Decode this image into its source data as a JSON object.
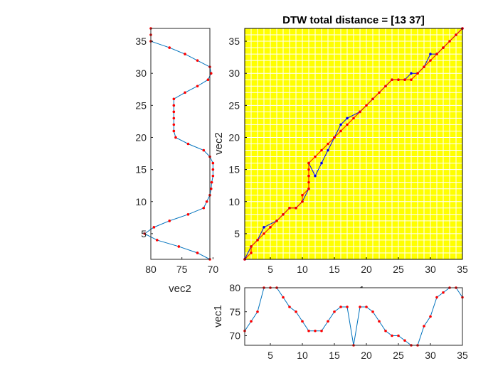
{
  "chart_data": [
    {
      "id": "main",
      "type": "line",
      "title": "DTW total distance = [13 37]",
      "xlabel": "vec1",
      "ylabel": "vec2",
      "xlim": [
        1,
        35
      ],
      "ylim": [
        1,
        37
      ],
      "xticks": [
        5,
        10,
        15,
        20,
        25,
        30,
        35
      ],
      "yticks": [
        5,
        10,
        15,
        20,
        25,
        30,
        35
      ],
      "grid": true,
      "colors": {
        "background": "#ffff00",
        "grid": "#ffffff",
        "frame": "#000000"
      },
      "series": [
        {
          "style": "blue path with blue dots",
          "color": "#0000ff",
          "points": [
            [
              1,
              1
            ],
            [
              2,
              3
            ],
            [
              3,
              4
            ],
            [
              4,
              6
            ],
            [
              6,
              7
            ],
            [
              7,
              8
            ],
            [
              8,
              9
            ],
            [
              9,
              9
            ],
            [
              10,
              10
            ],
            [
              11,
              12
            ],
            [
              11,
              14
            ],
            [
              11,
              16
            ],
            [
              12,
              14
            ],
            [
              13,
              16
            ],
            [
              14,
              18
            ],
            [
              15,
              20
            ],
            [
              16,
              22
            ],
            [
              17,
              23
            ],
            [
              19,
              24
            ],
            [
              21,
              26
            ],
            [
              23,
              28
            ],
            [
              24,
              29
            ],
            [
              25,
              29
            ],
            [
              26,
              29
            ],
            [
              27,
              30
            ],
            [
              28,
              30
            ],
            [
              29,
              31
            ],
            [
              30,
              33
            ],
            [
              31,
              33
            ],
            [
              32,
              34
            ],
            [
              34,
              36
            ],
            [
              35,
              37
            ]
          ]
        },
        {
          "style": "red path with red dots",
          "color": "#ff0000",
          "points": [
            [
              1,
              1
            ],
            [
              2,
              2
            ],
            [
              2,
              3
            ],
            [
              3,
              4
            ],
            [
              4,
              5
            ],
            [
              5,
              6
            ],
            [
              6,
              7
            ],
            [
              7,
              8
            ],
            [
              8,
              9
            ],
            [
              9,
              9
            ],
            [
              10,
              10
            ],
            [
              10,
              11
            ],
            [
              11,
              12
            ],
            [
              11,
              13
            ],
            [
              11,
              14
            ],
            [
              11,
              15
            ],
            [
              11,
              16
            ],
            [
              12,
              17
            ],
            [
              13,
              18
            ],
            [
              14,
              19
            ],
            [
              15,
              20
            ],
            [
              16,
              21
            ],
            [
              17,
              22
            ],
            [
              18,
              23
            ],
            [
              19,
              24
            ],
            [
              20,
              25
            ],
            [
              21,
              26
            ],
            [
              22,
              27
            ],
            [
              23,
              28
            ],
            [
              24,
              29
            ],
            [
              25,
              29
            ],
            [
              26,
              29
            ],
            [
              27,
              29
            ],
            [
              28,
              30
            ],
            [
              29,
              31
            ],
            [
              30,
              32
            ],
            [
              31,
              33
            ],
            [
              32,
              34
            ],
            [
              33,
              35
            ],
            [
              34,
              36
            ],
            [
              35,
              37
            ]
          ]
        }
      ]
    },
    {
      "id": "left",
      "type": "line",
      "orientation": "vertical",
      "xlabel": "vec2",
      "xlim": [
        80,
        70.5
      ],
      "ylim": [
        1,
        37
      ],
      "xticks": [
        80,
        75,
        70
      ],
      "yticks": [
        5,
        10,
        15,
        20,
        25,
        30,
        35
      ],
      "colors": {
        "line": "#0072bd",
        "marker": "#ff0000"
      },
      "values": [
        70.5,
        72.5,
        75.5,
        79,
        81,
        79.5,
        77,
        74,
        71.5,
        71,
        70.5,
        70.3,
        70.2,
        70,
        70,
        70,
        70.5,
        71.5,
        74,
        76,
        76.3,
        76.3,
        76.3,
        76.3,
        76.3,
        76.3,
        74.5,
        72.5,
        70.8,
        70.3,
        70.5,
        72.5,
        74.5,
        77,
        80,
        80,
        80
      ]
    },
    {
      "id": "bottom",
      "type": "line",
      "xlabel": "vec1",
      "ylabel": "vec1",
      "xlim": [
        1,
        35
      ],
      "ylim": [
        68,
        80
      ],
      "xticks": [
        5,
        10,
        15,
        20,
        25,
        30,
        35
      ],
      "yticks": [
        70,
        75,
        80
      ],
      "colors": {
        "line": "#0072bd",
        "marker": "#ff0000"
      },
      "values": [
        71,
        73,
        75,
        80,
        80,
        80,
        78,
        76,
        75,
        73,
        71,
        71,
        71,
        73,
        75,
        76,
        76,
        68,
        76,
        76,
        75,
        73,
        71,
        70,
        70,
        69,
        68,
        68,
        72,
        74,
        78,
        79,
        80,
        80,
        78
      ]
    }
  ]
}
